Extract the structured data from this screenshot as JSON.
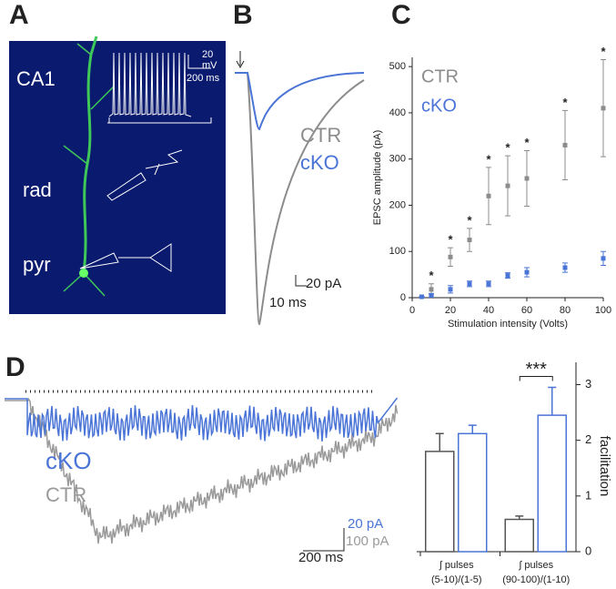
{
  "panel_labels": [
    "A",
    "B",
    "C",
    "D"
  ],
  "panel_a": {
    "regions": [
      "CA1",
      "rad",
      "pyr"
    ],
    "scale_labels": [
      "20",
      "mV",
      "200 ms"
    ]
  },
  "panel_b": {
    "legend": [
      "CTR",
      "cKO"
    ],
    "scale_labels": [
      "20 pA",
      "10 ms"
    ]
  },
  "panel_d_traces": {
    "legend": [
      "cKO",
      "CTR"
    ],
    "scale_labels": [
      "20 pA",
      "100 pA",
      "200 ms"
    ]
  },
  "chart_data": [
    {
      "type": "scatter",
      "xlabel": "Stimulation intensity (Volts)",
      "ylabel": "EPSC amplitude (pA)",
      "x": [
        5,
        10,
        20,
        30,
        40,
        50,
        60,
        80,
        100
      ],
      "series": [
        {
          "name": "CTR",
          "color": "#8c8c8c",
          "values": [
            2,
            18,
            88,
            125,
            220,
            242,
            258,
            330,
            410
          ],
          "errors": [
            1,
            12,
            20,
            25,
            62,
            65,
            60,
            75,
            105
          ]
        },
        {
          "name": "cKO",
          "color": "#4a74d6",
          "values": [
            2,
            5,
            18,
            30,
            30,
            48,
            55,
            65,
            85
          ],
          "errors": [
            1,
            4,
            8,
            6,
            6,
            6,
            10,
            10,
            15
          ]
        }
      ],
      "annotations": [
        {
          "x": 10,
          "text": "*"
        },
        {
          "x": 20,
          "text": "*"
        },
        {
          "x": 30,
          "text": "*"
        },
        {
          "x": 40,
          "text": "*"
        },
        {
          "x": 50,
          "text": "*"
        },
        {
          "x": 60,
          "text": "*"
        },
        {
          "x": 80,
          "text": "*"
        },
        {
          "x": 100,
          "text": "*"
        }
      ],
      "xlim": [
        0,
        100
      ],
      "xticks": [
        0,
        20,
        40,
        60,
        80,
        100
      ],
      "ylim": [
        0,
        520
      ],
      "yticks": [
        0,
        100,
        200,
        300,
        400,
        500
      ]
    },
    {
      "type": "bar",
      "ylabel": "facilitation",
      "categories": [
        [
          "∫ pulses",
          "(5-10)/(1-5)"
        ],
        [
          "∫ pulses",
          "(90-100)/(1-10)"
        ]
      ],
      "series": [
        {
          "color": "#555555",
          "values": [
            1.8,
            0.58
          ],
          "errors": [
            0.32,
            0.06
          ]
        },
        {
          "color": "#4a74d6",
          "values": [
            2.12,
            2.45
          ],
          "errors": [
            0.15,
            0.5
          ]
        }
      ],
      "annotations": [
        {
          "category": 1,
          "text": "***"
        }
      ],
      "ylim": [
        0,
        3.4
      ],
      "yticks": [
        0,
        1,
        2,
        3
      ]
    }
  ]
}
